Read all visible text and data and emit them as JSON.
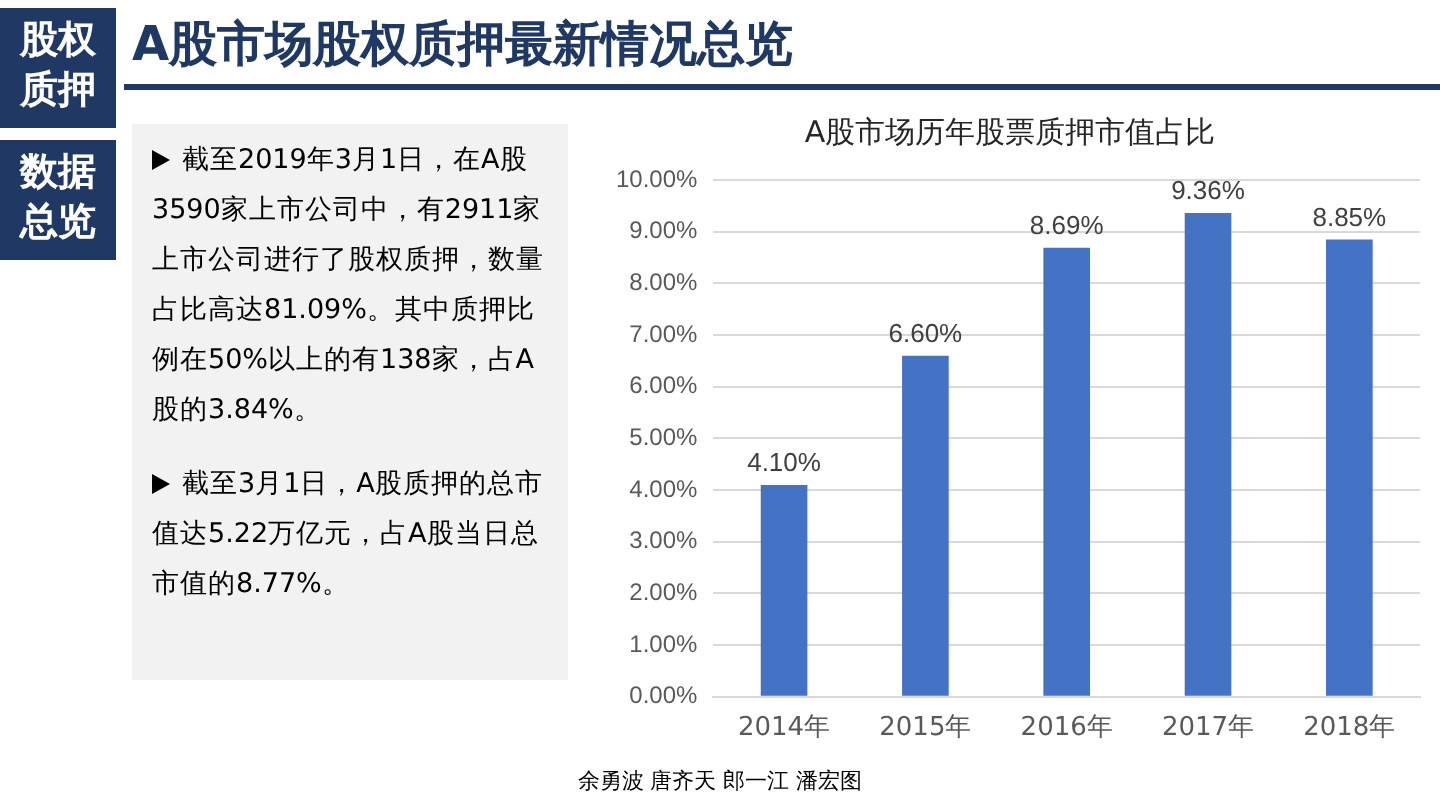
{
  "chart_data": {
    "type": "bar",
    "title": "A股市场历年股票质押市值占比",
    "categories": [
      "2014年",
      "2015年",
      "2016年",
      "2017年",
      "2018年"
    ],
    "values": [
      4.1,
      6.6,
      8.69,
      9.36,
      8.85
    ],
    "value_labels": [
      "4.10%",
      "6.60%",
      "8.69%",
      "9.36%",
      "8.85%"
    ],
    "color": "#4472c4",
    "ylim": [
      0,
      10
    ],
    "yticks": [
      {
        "value": 0,
        "label": "0.00%"
      },
      {
        "value": 1,
        "label": "1.00%"
      },
      {
        "value": 2,
        "label": "2.00%"
      },
      {
        "value": 3,
        "label": "3.00%"
      },
      {
        "value": 4,
        "label": "4.00%"
      },
      {
        "value": 5,
        "label": "5.00%"
      },
      {
        "value": 6,
        "label": "6.00%"
      },
      {
        "value": 7,
        "label": "7.00%"
      },
      {
        "value": 8,
        "label": "8.00%"
      },
      {
        "value": 9,
        "label": "9.00%"
      },
      {
        "value": 10,
        "label": "10.00%"
      }
    ],
    "grid": "y",
    "annotations": [
      "A股市场股权质押最新情况总览",
      "股权质押",
      "数据总览",
      "截至2019年3月1日，在A股3590家上市公司中，有2911家上市公司进行了股权质押，数量占比高达81.09%。其中质押比例在50%以上的有138家，占A股的3.84%。",
      "截至3月1日，A股质押的总市值达5.22万亿元，占A股当日总市值的8.77%。",
      "余勇波 唐齐天 郎一江 潘宏图"
    ]
  }
}
